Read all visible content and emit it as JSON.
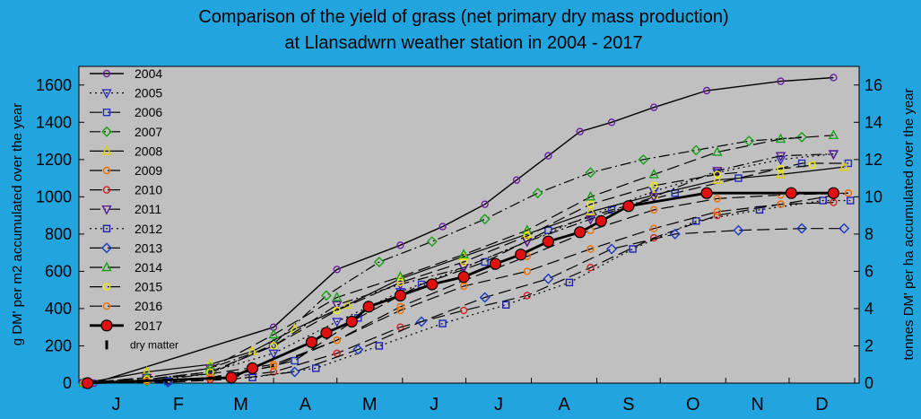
{
  "chart_data": {
    "type": "line",
    "title": "Comparison of the yield of grass (net primary dry mass production)",
    "subtitle": "at Llansadwrn weather station in 2004 - 2017",
    "ylabel": "g DM' per m2 accumulated over the year",
    "y2label": "tonnes DM' per ha accumulated over the year",
    "ylim": [
      0,
      1700
    ],
    "y2lim": [
      0,
      17
    ],
    "yticks": [
      "0",
      "200",
      "400",
      "600",
      "800",
      "1000",
      "1200",
      "1400",
      "1600"
    ],
    "y2ticks": [
      "0",
      "2",
      "4",
      "6",
      "8",
      "10",
      "12",
      "14",
      "16"
    ],
    "xlim": [
      0,
      365
    ],
    "months": [
      "J",
      "F",
      "M",
      "A",
      "M",
      "J",
      "J",
      "A",
      "S",
      "O",
      "N",
      "D"
    ],
    "grid": false,
    "legend_position": "top-left",
    "legend_extra": "dry matter",
    "series": [
      {
        "name": "2004",
        "color": "#6a1ea0",
        "marker": "circle",
        "dash": "solid",
        "width": 1.4,
        "x": [
          5,
          90,
          120,
          150,
          170,
          190,
          205,
          220,
          235,
          250,
          270,
          295,
          330,
          355
        ],
        "y": [
          0,
          300,
          610,
          740,
          840,
          960,
          1090,
          1220,
          1350,
          1400,
          1480,
          1570,
          1620,
          1640
        ]
      },
      {
        "name": "2005",
        "color": "#3030c0",
        "marker": "tri_down",
        "dash": "dot",
        "width": 1.2,
        "x": [
          0,
          30,
          60,
          90,
          120,
          150,
          180,
          210,
          240,
          270,
          300,
          330,
          355
        ],
        "y": [
          0,
          20,
          60,
          160,
          330,
          490,
          620,
          760,
          900,
          1030,
          1130,
          1200,
          1230
        ]
      },
      {
        "name": "2006",
        "color": "#2030c0",
        "marker": "square",
        "dash": "dash",
        "width": 1.2,
        "x": [
          0,
          40,
          70,
          100,
          130,
          160,
          190,
          220,
          250,
          280,
          310,
          340,
          362
        ],
        "y": [
          0,
          10,
          40,
          120,
          350,
          530,
          650,
          820,
          930,
          1020,
          1100,
          1180,
          1180
        ]
      },
      {
        "name": "2007",
        "color": "#16a016",
        "marker": "diamond",
        "dash": "dashdot",
        "width": 1.2,
        "x": [
          0,
          30,
          60,
          90,
          115,
          140,
          165,
          190,
          215,
          240,
          265,
          290,
          315,
          340
        ],
        "y": [
          0,
          10,
          50,
          210,
          470,
          650,
          760,
          880,
          1020,
          1130,
          1200,
          1250,
          1300,
          1320
        ]
      },
      {
        "name": "2008",
        "color": "#e0d000",
        "marker": "tri_up",
        "dash": "solid",
        "width": 1.2,
        "x": [
          0,
          30,
          60,
          80,
          100,
          125,
          150,
          180,
          210,
          240,
          270,
          300,
          330,
          360
        ],
        "y": [
          0,
          60,
          100,
          170,
          290,
          420,
          560,
          680,
          800,
          920,
          1010,
          1090,
          1120,
          1160
        ]
      },
      {
        "name": "2009",
        "color": "#f07000",
        "marker": "circle",
        "dash": "dash",
        "width": 1.2,
        "x": [
          0,
          30,
          60,
          90,
          120,
          150,
          180,
          210,
          240,
          270,
          300,
          330,
          362
        ],
        "y": [
          0,
          20,
          50,
          100,
          230,
          410,
          550,
          680,
          820,
          930,
          990,
          1010,
          1020
        ]
      },
      {
        "name": "2010",
        "color": "#d02020",
        "marker": "circle",
        "dash": "dash",
        "width": 1.2,
        "x": [
          0,
          30,
          60,
          90,
          120,
          150,
          180,
          210,
          240,
          270,
          300,
          330,
          355
        ],
        "y": [
          0,
          10,
          20,
          60,
          160,
          300,
          390,
          470,
          620,
          780,
          900,
          960,
          970
        ]
      },
      {
        "name": "2011",
        "color": "#5a1a90",
        "marker": "tri_down",
        "dash": "dashdot",
        "width": 1.2,
        "x": [
          0,
          30,
          60,
          90,
          120,
          150,
          180,
          210,
          240,
          270,
          300,
          330,
          355
        ],
        "y": [
          0,
          30,
          80,
          200,
          420,
          530,
          620,
          760,
          880,
          1000,
          1140,
          1220,
          1230
        ]
      },
      {
        "name": "2012",
        "color": "#2020b0",
        "marker": "square",
        "dash": "dot",
        "width": 1.2,
        "x": [
          0,
          40,
          80,
          110,
          140,
          170,
          200,
          230,
          260,
          290,
          320,
          350,
          363
        ],
        "y": [
          0,
          10,
          30,
          80,
          200,
          320,
          420,
          540,
          720,
          870,
          930,
          980,
          980
        ]
      },
      {
        "name": "2013",
        "color": "#1a3ac0",
        "marker": "diamond",
        "dash": "dash",
        "width": 1.2,
        "x": [
          0,
          40,
          70,
          100,
          130,
          160,
          190,
          220,
          250,
          280,
          310,
          340,
          360
        ],
        "y": [
          0,
          5,
          20,
          60,
          180,
          330,
          460,
          560,
          720,
          800,
          820,
          830,
          830
        ]
      },
      {
        "name": "2014",
        "color": "#16a016",
        "marker": "tri_up",
        "dash": "dash",
        "width": 1.2,
        "x": [
          0,
          30,
          60,
          90,
          120,
          150,
          180,
          210,
          240,
          270,
          300,
          330,
          355
        ],
        "y": [
          0,
          30,
          80,
          260,
          460,
          570,
          690,
          820,
          1000,
          1120,
          1240,
          1310,
          1330
        ]
      },
      {
        "name": "2015",
        "color": "#f0f000",
        "marker": "circle",
        "dash": "dash",
        "width": 1.2,
        "x": [
          0,
          30,
          60,
          90,
          120,
          150,
          180,
          210,
          240,
          270,
          300,
          330,
          345
        ],
        "y": [
          0,
          20,
          60,
          200,
          390,
          540,
          650,
          790,
          960,
          1060,
          1120,
          1150,
          1170
        ]
      },
      {
        "name": "2016",
        "color": "#f07000",
        "marker": "circle",
        "dash": "dash",
        "width": 1.2,
        "x": [
          0,
          30,
          60,
          90,
          120,
          150,
          180,
          210,
          240,
          270,
          300,
          330,
          362
        ],
        "y": [
          0,
          10,
          30,
          90,
          230,
          390,
          520,
          600,
          720,
          830,
          920,
          960,
          1020
        ]
      },
      {
        "name": "2017",
        "color": "#e01010",
        "marker": "big_circle",
        "dash": "solid",
        "width": 2.8,
        "x": [
          2,
          70,
          80,
          108,
          115,
          127,
          135,
          150,
          165,
          180,
          195,
          207,
          220,
          235,
          245,
          258,
          295,
          335,
          355
        ],
        "y": [
          0,
          30,
          80,
          220,
          270,
          330,
          410,
          470,
          530,
          570,
          640,
          690,
          760,
          810,
          870,
          950,
          1020,
          1020,
          1020
        ]
      }
    ]
  }
}
